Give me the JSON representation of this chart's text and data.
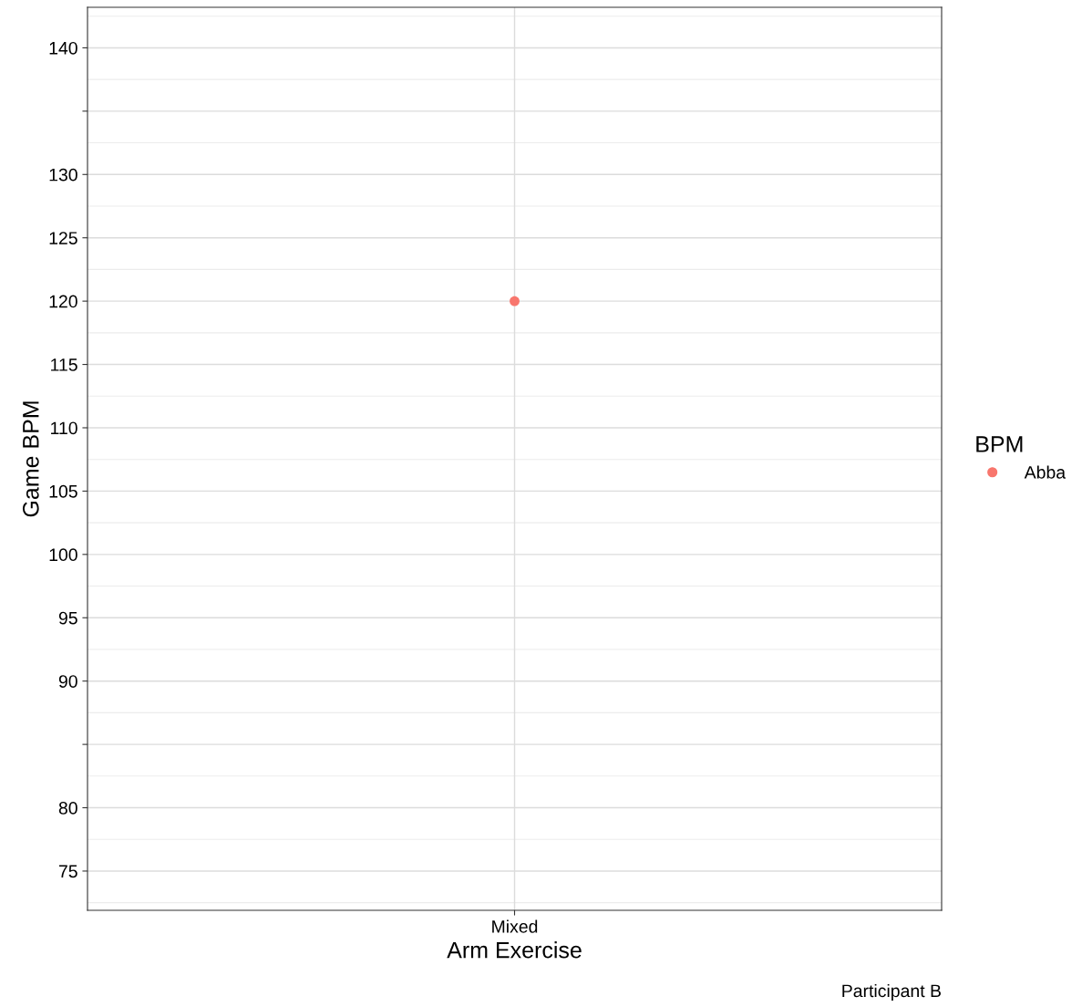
{
  "chart_data": {
    "type": "scatter",
    "xlabel": "Arm Exercise",
    "ylabel": "Game BPM",
    "legend_title": "BPM",
    "categories": [
      "Mixed"
    ],
    "series": [
      {
        "name": "Abba",
        "color": "#f8766d",
        "values": [
          120
        ]
      }
    ],
    "ylim": [
      71.9,
      143.2
    ],
    "yticks": [
      75,
      80,
      {
        "value": 85,
        "label": null
      },
      90,
      95,
      100,
      105,
      110,
      115,
      120,
      125,
      130,
      {
        "value": 135,
        "label": null
      },
      140
    ],
    "grid": true,
    "legend": "right",
    "marker": "circle",
    "annotations": [
      "Participant B"
    ]
  }
}
